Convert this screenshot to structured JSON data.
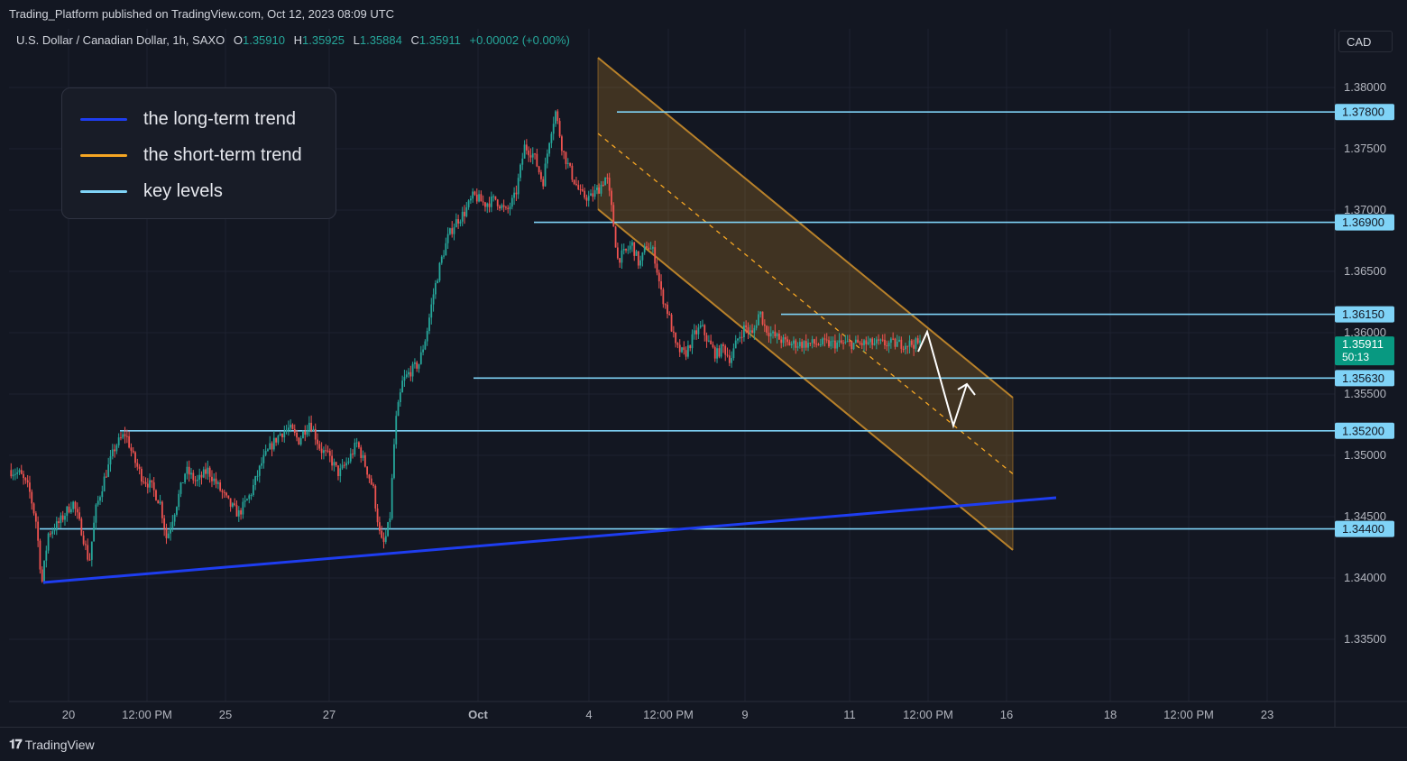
{
  "header": {
    "published": "Trading_Platform published on TradingView.com, Oct 12, 2023 08:09 UTC",
    "symbol": "U.S. Dollar / Canadian Dollar, 1h, SAXO",
    "open_label": "O",
    "open": "1.35910",
    "high_label": "H",
    "high": "1.35925",
    "low_label": "L",
    "low": "1.35884",
    "close_label": "C",
    "close": "1.35911",
    "change": "+0.00002 (+0.00%)",
    "currency": "CAD"
  },
  "legend": {
    "items": [
      {
        "label": "the long-term trend",
        "color": "#1e3df0"
      },
      {
        "label": "the short-term trend",
        "color": "#f5a623"
      },
      {
        "label": "key levels",
        "color": "#7fd3f7"
      }
    ]
  },
  "footer": {
    "brand": "TradingView",
    "logo_icon": "tradingview-logo-icon"
  },
  "chart_data": {
    "type": "candlestick",
    "y_axis": {
      "range": [
        1.3315,
        1.3825
      ],
      "ticks": [
        "1.38000",
        "1.37500",
        "1.37000",
        "1.36500",
        "1.36000",
        "1.35500",
        "1.35000",
        "1.34500",
        "1.34000",
        "1.33500"
      ]
    },
    "x_axis": {
      "ticks": [
        "20",
        "12:00 PM",
        "25",
        "27",
        "Oct",
        "4",
        "12:00 PM",
        "9",
        "11",
        "12:00 PM",
        "16",
        "18",
        "12:00 PM",
        "23"
      ]
    },
    "key_levels": [
      1.378,
      1.369,
      1.3615,
      1.3563,
      1.352,
      1.344
    ],
    "key_level_labels": [
      "1.37800",
      "1.36900",
      "1.36150",
      "1.35630",
      "1.35200",
      "1.34400"
    ],
    "current_price": {
      "value": "1.35911",
      "countdown": "50:13"
    },
    "price_path": [
      [
        0,
        1.3488
      ],
      [
        0.012,
        1.3485
      ],
      [
        0.022,
        1.3472
      ],
      [
        0.03,
        1.3445
      ],
      [
        0.036,
        1.3395
      ],
      [
        0.043,
        1.3436
      ],
      [
        0.055,
        1.3445
      ],
      [
        0.07,
        1.3462
      ],
      [
        0.08,
        1.3438
      ],
      [
        0.088,
        1.3412
      ],
      [
        0.095,
        1.3455
      ],
      [
        0.105,
        1.3482
      ],
      [
        0.117,
        1.3508
      ],
      [
        0.128,
        1.3518
      ],
      [
        0.137,
        1.3497
      ],
      [
        0.146,
        1.3482
      ],
      [
        0.156,
        1.3475
      ],
      [
        0.166,
        1.3461
      ],
      [
        0.173,
        1.3432
      ],
      [
        0.183,
        1.3458
      ],
      [
        0.194,
        1.3488
      ],
      [
        0.206,
        1.3478
      ],
      [
        0.218,
        1.3488
      ],
      [
        0.23,
        1.3474
      ],
      [
        0.242,
        1.346
      ],
      [
        0.252,
        1.3452
      ],
      [
        0.265,
        1.3468
      ],
      [
        0.278,
        1.3495
      ],
      [
        0.288,
        1.3508
      ],
      [
        0.298,
        1.3518
      ],
      [
        0.308,
        1.3522
      ],
      [
        0.318,
        1.3512
      ],
      [
        0.33,
        1.3528
      ],
      [
        0.342,
        1.3505
      ],
      [
        0.352,
        1.3498
      ],
      [
        0.362,
        1.3485
      ],
      [
        0.372,
        1.3495
      ],
      [
        0.382,
        1.351
      ],
      [
        0.392,
        1.349
      ],
      [
        0.4,
        1.3472
      ],
      [
        0.408,
        1.343
      ],
      [
        0.412,
        1.3428
      ],
      [
        0.418,
        1.3448
      ],
      [
        0.424,
        1.3525
      ],
      [
        0.432,
        1.356
      ],
      [
        0.44,
        1.3568
      ],
      [
        0.45,
        1.3575
      ],
      [
        0.458,
        1.3598
      ],
      [
        0.466,
        1.3632
      ],
      [
        0.474,
        1.3658
      ],
      [
        0.482,
        1.3678
      ],
      [
        0.49,
        1.369
      ],
      [
        0.5,
        1.3698
      ],
      [
        0.51,
        1.3712
      ],
      [
        0.522,
        1.3705
      ],
      [
        0.534,
        1.3709
      ],
      [
        0.546,
        1.3698
      ],
      [
        0.556,
        1.3712
      ],
      [
        0.566,
        1.3752
      ],
      [
        0.576,
        1.3745
      ],
      [
        0.586,
        1.3722
      ],
      [
        0.594,
        1.3762
      ],
      [
        0.6,
        1.378
      ],
      [
        0.608,
        1.3748
      ],
      [
        0.618,
        1.3728
      ],
      [
        0.628,
        1.3712
      ],
      [
        0.638,
        1.371
      ],
      [
        0.648,
        1.3718
      ],
      [
        0.656,
        1.3728
      ],
      [
        0.662,
        1.3698
      ],
      [
        0.668,
        1.366
      ],
      [
        0.676,
        1.3665
      ],
      [
        0.684,
        1.3672
      ],
      [
        0.692,
        1.3655
      ],
      [
        0.7,
        1.3672
      ],
      [
        0.708,
        1.3665
      ],
      [
        0.716,
        1.3632
      ],
      [
        0.724,
        1.3615
      ],
      [
        0.732,
        1.3588
      ],
      [
        0.742,
        1.3582
      ],
      [
        0.752,
        1.3598
      ],
      [
        0.76,
        1.3605
      ],
      [
        0.768,
        1.3592
      ],
      [
        0.776,
        1.3582
      ],
      [
        0.784,
        1.3588
      ],
      [
        0.792,
        1.3578
      ],
      [
        0.8,
        1.3595
      ],
      [
        0.808,
        1.3605
      ],
      [
        0.816,
        1.3598
      ],
      [
        0.824,
        1.3618
      ],
      [
        0.83,
        1.3604
      ],
      [
        0.838,
        1.3598
      ],
      [
        0.846,
        1.3595
      ],
      [
        0.854,
        1.3591
      ]
    ],
    "annotations": [
      "descending channel",
      "projected path arrow"
    ]
  }
}
